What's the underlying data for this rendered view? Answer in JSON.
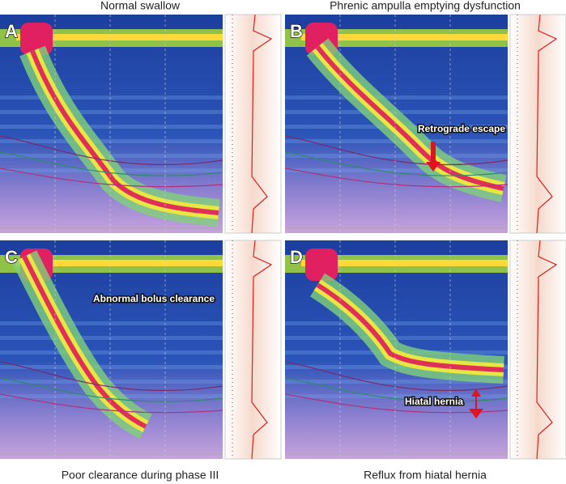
{
  "panels": [
    {
      "letter": "A",
      "caption": "Normal swallow"
    },
    {
      "letter": "B",
      "caption": "Phrenic ampulla emptying dysfunction",
      "annotation": "Retrograde escape"
    },
    {
      "letter": "C",
      "caption": "Poor clearance during phase III",
      "annotation": "Abnormal bolus clearance"
    },
    {
      "letter": "D",
      "caption": "Reflux from hiatal hernia",
      "annotation": "Hiatal hernia"
    }
  ]
}
